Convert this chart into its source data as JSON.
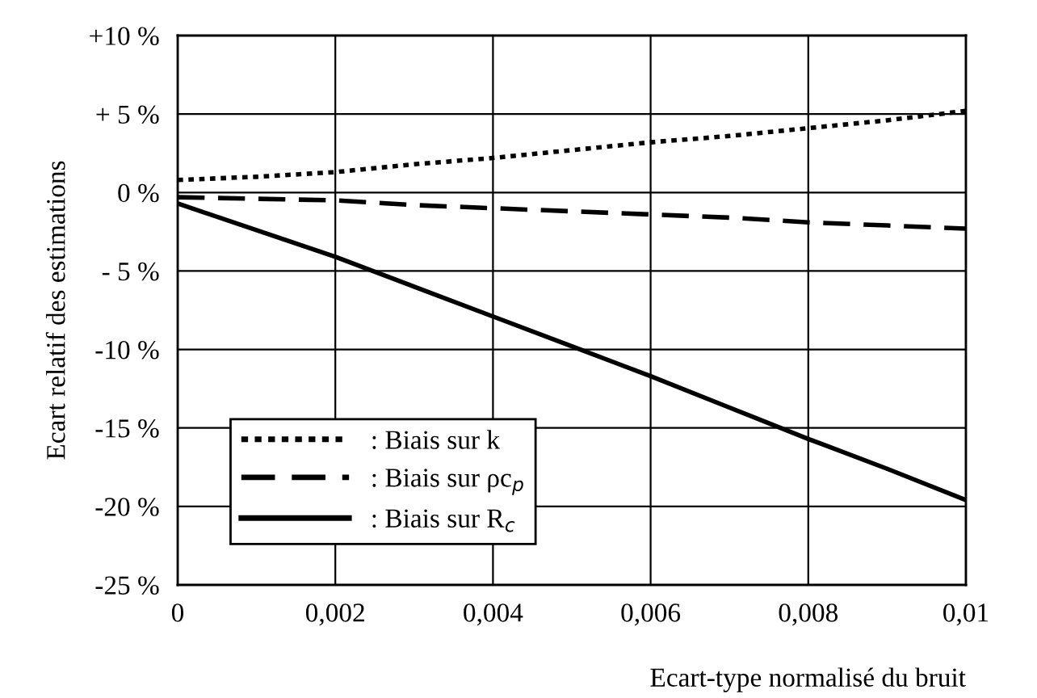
{
  "chart_data": {
    "type": "line",
    "xlabel": "Ecart-type normalisé du bruit",
    "ylabel": "Ecart relatif des estimations",
    "x": [
      0,
      0.001,
      0.002,
      0.003,
      0.004,
      0.005,
      0.006,
      0.007,
      0.008,
      0.009,
      0.01
    ],
    "series": [
      {
        "name": ": Biais sur k",
        "color": "#000000",
        "line_style": "dotted",
        "values": [
          0.8,
          1.0,
          1.3,
          1.8,
          2.2,
          2.7,
          3.2,
          3.6,
          4.1,
          4.6,
          5.2
        ]
      },
      {
        "name": ": Biais sur ρc$_{p}$",
        "color": "#000000",
        "line_style": "dashed",
        "values": [
          -0.3,
          -0.4,
          -0.5,
          -0.8,
          -1.0,
          -1.2,
          -1.4,
          -1.6,
          -1.9,
          -2.1,
          -2.3
        ]
      },
      {
        "name": ": Biais sur R$_{c}$",
        "color": "#000000",
        "line_style": "solid",
        "values": [
          -0.7,
          -2.4,
          -4.1,
          -6.0,
          -7.9,
          -9.8,
          -11.7,
          -13.7,
          -15.7,
          -17.6,
          -19.6
        ]
      }
    ],
    "xlim": [
      0,
      0.01
    ],
    "ylim": [
      -25,
      10
    ],
    "xticks": [
      0,
      {
        "value": 0.002,
        "label": "0,002"
      },
      {
        "value": 0.004,
        "label": "0,004"
      },
      {
        "value": 0.006,
        "label": "0,006"
      },
      {
        "value": 0.008,
        "label": "0,008"
      },
      {
        "value": 0.01,
        "label": "0,01"
      }
    ],
    "yticks": [
      {
        "value": 10,
        "label": "+10 %"
      },
      {
        "value": 5,
        "label": "+ 5 %"
      },
      {
        "value": 0,
        "label": "0 %"
      },
      {
        "value": -5,
        "label": "- 5 %"
      },
      {
        "value": -10,
        "label": "-10 %"
      },
      {
        "value": -15,
        "label": "-15 %"
      },
      {
        "value": -20,
        "label": "-20 %"
      },
      {
        "value": -25,
        "label": "-25 %"
      }
    ],
    "grid": true,
    "legend": "bottom left",
    "marker": "none"
  }
}
